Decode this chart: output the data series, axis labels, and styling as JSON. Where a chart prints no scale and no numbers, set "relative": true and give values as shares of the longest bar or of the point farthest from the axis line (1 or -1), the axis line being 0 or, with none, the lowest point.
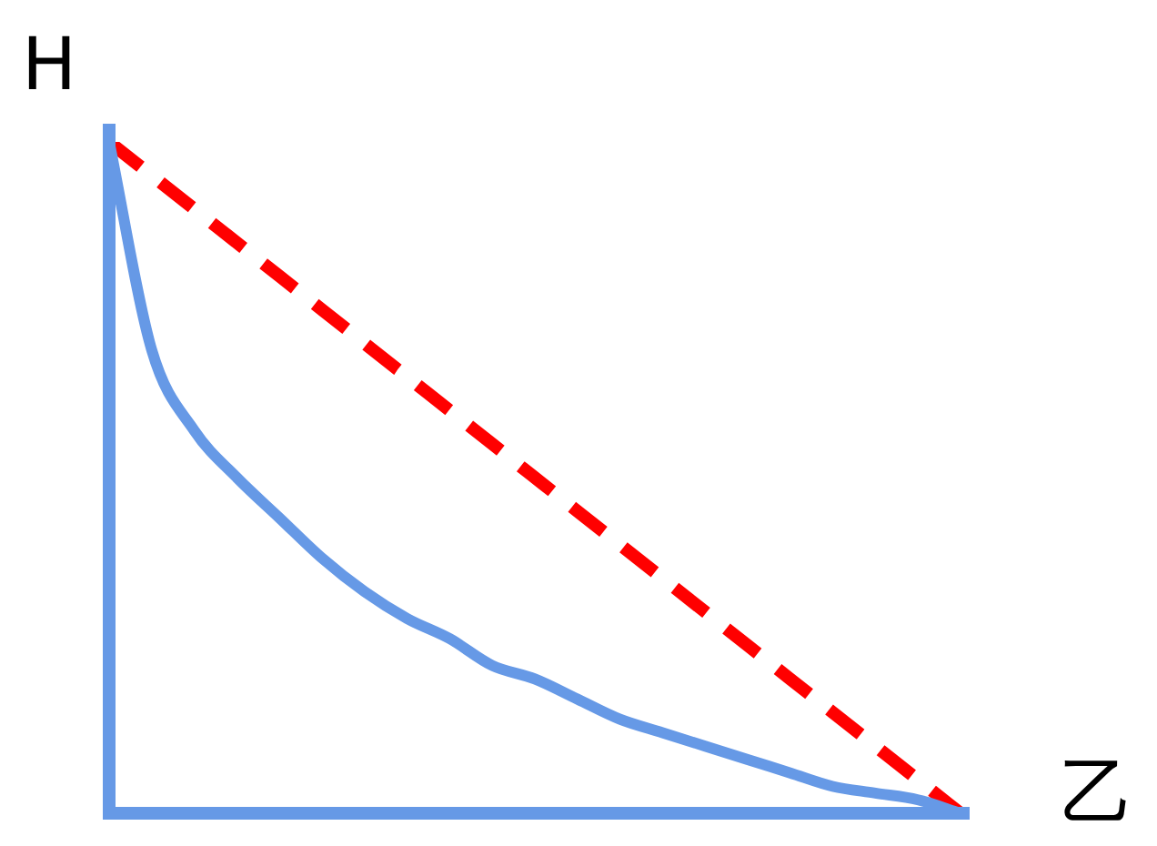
{
  "chart_data": {
    "type": "line",
    "relative": true,
    "xlabel": "乙",
    "ylabel": "H",
    "marker": "none",
    "legend": false,
    "tick_labels": false,
    "categories": [
      null,
      null,
      null,
      null,
      null,
      null,
      null,
      null,
      null,
      null,
      null,
      null,
      null,
      null,
      null,
      null,
      null,
      null,
      null,
      null,
      null
    ],
    "series": [
      {
        "color": "#6699e6",
        "line_style": "solid",
        "values": [
          1,
          0.69,
          0.57,
          0.5,
          0.44,
          0.38,
          0.33,
          0.29,
          0.26,
          0.22,
          0.2,
          0.17,
          0.14,
          0.12,
          0.1,
          0.08,
          0.06,
          0.04,
          0.03,
          0.02,
          0
        ]
      },
      {
        "color": "#ff0000",
        "line_style": "dashed",
        "values": [
          1,
          0.95,
          0.9,
          0.85,
          0.8,
          0.75,
          0.7,
          0.65,
          0.6,
          0.55,
          0.5,
          0.45,
          0.4,
          0.35,
          0.3,
          0.25,
          0.2,
          0.15,
          0.1,
          0.05,
          0
        ]
      }
    ]
  }
}
